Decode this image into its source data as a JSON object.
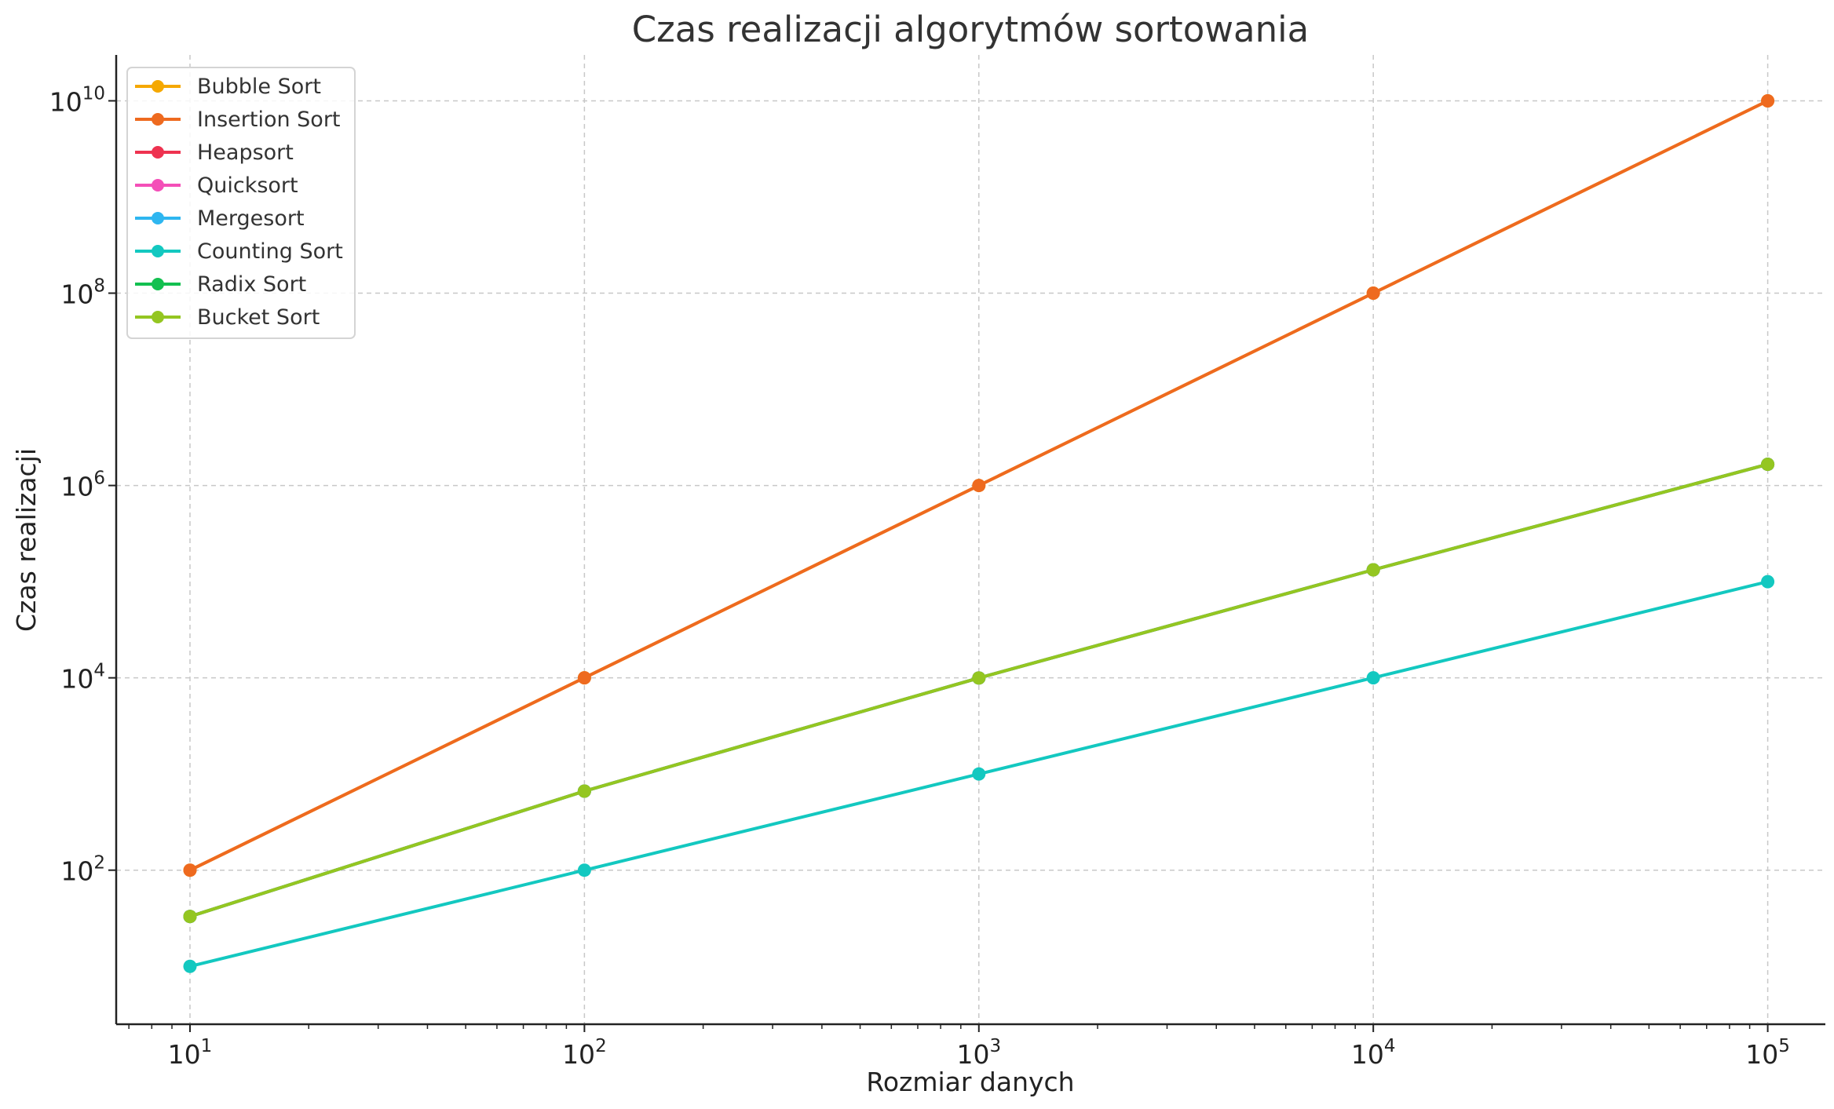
{
  "chart_data": {
    "type": "line",
    "title": "Czas realizacji algorytmów sortowania",
    "xlabel": "Rozmiar danych",
    "ylabel": "Czas realizacji",
    "x_scale": "log",
    "y_scale": "log",
    "xlim": [
      6.5,
      140000
    ],
    "ylim": [
      2.5,
      30000000000
    ],
    "x": [
      10,
      100,
      1000,
      10000,
      100000
    ],
    "x_ticks": [
      {
        "value": 10,
        "base": "10",
        "exp": "1"
      },
      {
        "value": 100,
        "base": "10",
        "exp": "2"
      },
      {
        "value": 1000,
        "base": "10",
        "exp": "3"
      },
      {
        "value": 10000,
        "base": "10",
        "exp": "4"
      },
      {
        "value": 100000,
        "base": "10",
        "exp": "5"
      }
    ],
    "y_ticks": [
      {
        "value": 100,
        "base": "10",
        "exp": "2"
      },
      {
        "value": 10000,
        "base": "10",
        "exp": "4"
      },
      {
        "value": 1000000,
        "base": "10",
        "exp": "6"
      },
      {
        "value": 100000000,
        "base": "10",
        "exp": "8"
      },
      {
        "value": 10000000000,
        "base": "10",
        "exp": "10"
      }
    ],
    "grid": true,
    "legend_position": "top-left",
    "series": [
      {
        "name": "Bubble Sort",
        "color": "#f5a800",
        "values": [
          100,
          10000,
          1000000,
          100000000,
          10000000000
        ]
      },
      {
        "name": "Insertion Sort",
        "color": "#ee6a1f",
        "values": [
          100,
          10000,
          1000000,
          100000000,
          10000000000
        ]
      },
      {
        "name": "Heapsort",
        "color": "#ee3250",
        "values": [
          33,
          664,
          9966,
          132877,
          1660964
        ]
      },
      {
        "name": "Quicksort",
        "color": "#f44fb8",
        "values": [
          33,
          664,
          9966,
          132877,
          1660964
        ]
      },
      {
        "name": "Mergesort",
        "color": "#2eb6f0",
        "values": [
          33,
          664,
          9966,
          132877,
          1660964
        ]
      },
      {
        "name": "Counting Sort",
        "color": "#13c8c0",
        "values": [
          10,
          100,
          1000,
          10000,
          100000
        ]
      },
      {
        "name": "Radix Sort",
        "color": "#13c050",
        "values": [
          33,
          664,
          9966,
          132877,
          1660964
        ]
      },
      {
        "name": "Bucket Sort",
        "color": "#94c621",
        "values": [
          33,
          664,
          9966,
          132877,
          1660964
        ]
      }
    ]
  }
}
